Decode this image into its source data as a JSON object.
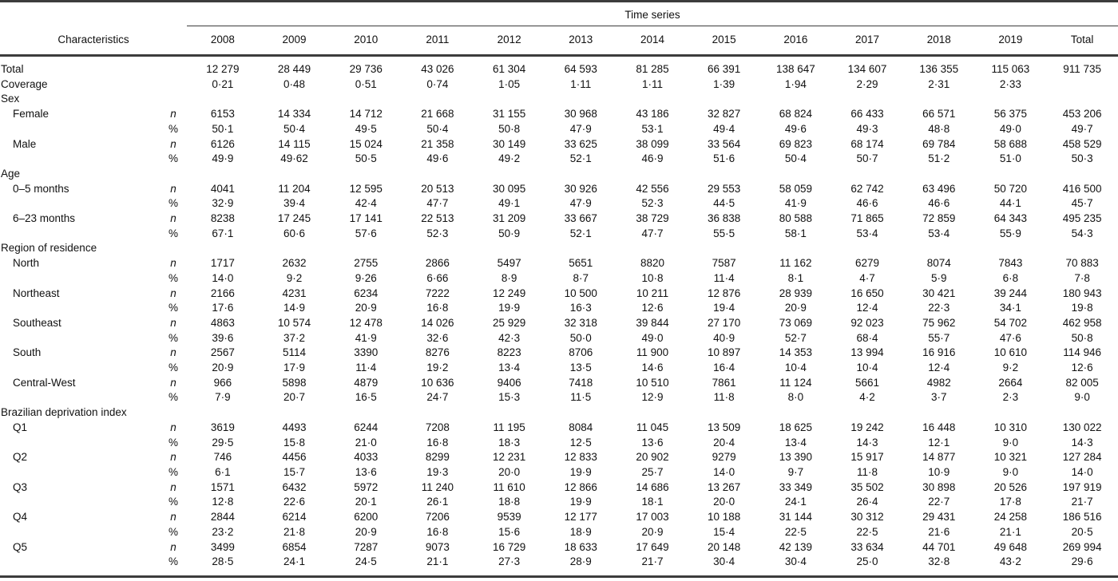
{
  "page": {
    "background": "#ffffff",
    "text_color": "#111111",
    "rule_color": "#3c3c3c"
  },
  "table": {
    "spanner_label": "Time series",
    "characteristics_header": "Characteristics",
    "columns": [
      "2008",
      "2009",
      "2010",
      "2011",
      "2012",
      "2013",
      "2014",
      "2015",
      "2016",
      "2017",
      "2018",
      "2019",
      "Total"
    ],
    "rows": [
      {
        "type": "data",
        "label": "Total",
        "indent": 0,
        "stat": "",
        "values": [
          "12 279",
          "28 449",
          "29 736",
          "43 026",
          "61 304",
          "64 593",
          "81 285",
          "66 391",
          "138 647",
          "134 607",
          "136 355",
          "115 063",
          "911 735"
        ]
      },
      {
        "type": "data",
        "label": "Coverage",
        "indent": 0,
        "stat": "",
        "values": [
          "0·21",
          "0·48",
          "0·51",
          "0·74",
          "1·05",
          "1·11",
          "1·11",
          "1·39",
          "1·94",
          "2·29",
          "2·31",
          "2·33",
          ""
        ]
      },
      {
        "type": "section",
        "label": "Sex"
      },
      {
        "type": "data",
        "label": "Female",
        "indent": 1,
        "stat": "n",
        "values": [
          "6153",
          "14 334",
          "14 712",
          "21 668",
          "31 155",
          "30 968",
          "43 186",
          "32 827",
          "68 824",
          "66 433",
          "66 571",
          "56 375",
          "453 206"
        ]
      },
      {
        "type": "data",
        "label": "",
        "indent": 1,
        "stat": "%",
        "values": [
          "50·1",
          "50·4",
          "49·5",
          "50·4",
          "50·8",
          "47·9",
          "53·1",
          "49·4",
          "49·6",
          "49·3",
          "48·8",
          "49·0",
          "49·7"
        ]
      },
      {
        "type": "data",
        "label": "Male",
        "indent": 1,
        "stat": "n",
        "values": [
          "6126",
          "14 115",
          "15 024",
          "21 358",
          "30 149",
          "33 625",
          "38 099",
          "33 564",
          "69 823",
          "68 174",
          "69 784",
          "58 688",
          "458 529"
        ]
      },
      {
        "type": "data",
        "label": "",
        "indent": 1,
        "stat": "%",
        "values": [
          "49·9",
          "49·62",
          "50·5",
          "49·6",
          "49·2",
          "52·1",
          "46·9",
          "51·6",
          "50·4",
          "50·7",
          "51·2",
          "51·0",
          "50·3"
        ]
      },
      {
        "type": "section",
        "label": "Age"
      },
      {
        "type": "data",
        "label": "0–5 months",
        "indent": 1,
        "stat": "n",
        "values": [
          "4041",
          "11 204",
          "12 595",
          "20 513",
          "30 095",
          "30 926",
          "42 556",
          "29 553",
          "58 059",
          "62 742",
          "63 496",
          "50 720",
          "416 500"
        ]
      },
      {
        "type": "data",
        "label": "",
        "indent": 1,
        "stat": "%",
        "values": [
          "32·9",
          "39·4",
          "42·4",
          "47·7",
          "49·1",
          "47·9",
          "52·3",
          "44·5",
          "41·9",
          "46·6",
          "46·6",
          "44·1",
          "45·7"
        ]
      },
      {
        "type": "data",
        "label": "6–23 months",
        "indent": 1,
        "stat": "n",
        "values": [
          "8238",
          "17 245",
          "17 141",
          "22 513",
          "31 209",
          "33 667",
          "38 729",
          "36 838",
          "80 588",
          "71 865",
          "72 859",
          "64 343",
          "495 235"
        ]
      },
      {
        "type": "data",
        "label": "",
        "indent": 1,
        "stat": "%",
        "values": [
          "67·1",
          "60·6",
          "57·6",
          "52·3",
          "50·9",
          "52·1",
          "47·7",
          "55·5",
          "58·1",
          "53·4",
          "53·4",
          "55·9",
          "54·3"
        ]
      },
      {
        "type": "section",
        "label": "Region of residence"
      },
      {
        "type": "data",
        "label": "North",
        "indent": 1,
        "stat": "n",
        "values": [
          "1717",
          "2632",
          "2755",
          "2866",
          "5497",
          "5651",
          "8820",
          "7587",
          "11 162",
          "6279",
          "8074",
          "7843",
          "70 883"
        ]
      },
      {
        "type": "data",
        "label": "",
        "indent": 1,
        "stat": "%",
        "values": [
          "14·0",
          "9·2",
          "9·26",
          "6·66",
          "8·9",
          "8·7",
          "10·8",
          "11·4",
          "8·1",
          "4·7",
          "5·9",
          "6·8",
          "7·8"
        ]
      },
      {
        "type": "data",
        "label": "Northeast",
        "indent": 1,
        "stat": "n",
        "values": [
          "2166",
          "4231",
          "6234",
          "7222",
          "12 249",
          "10 500",
          "10 211",
          "12 876",
          "28 939",
          "16 650",
          "30 421",
          "39 244",
          "180 943"
        ]
      },
      {
        "type": "data",
        "label": "",
        "indent": 1,
        "stat": "%",
        "values": [
          "17·6",
          "14·9",
          "20·9",
          "16·8",
          "19·9",
          "16·3",
          "12·6",
          "19·4",
          "20·9",
          "12·4",
          "22·3",
          "34·1",
          "19·8"
        ]
      },
      {
        "type": "data",
        "label": "Southeast",
        "indent": 1,
        "stat": "n",
        "values": [
          "4863",
          "10 574",
          "12 478",
          "14 026",
          "25 929",
          "32 318",
          "39 844",
          "27 170",
          "73 069",
          "92 023",
          "75 962",
          "54 702",
          "462 958"
        ]
      },
      {
        "type": "data",
        "label": "",
        "indent": 1,
        "stat": "%",
        "values": [
          "39·6",
          "37·2",
          "41·9",
          "32·6",
          "42·3",
          "50·0",
          "49·0",
          "40·9",
          "52·7",
          "68·4",
          "55·7",
          "47·6",
          "50·8"
        ]
      },
      {
        "type": "data",
        "label": "South",
        "indent": 1,
        "stat": "n",
        "values": [
          "2567",
          "5114",
          "3390",
          "8276",
          "8223",
          "8706",
          "11 900",
          "10 897",
          "14 353",
          "13 994",
          "16 916",
          "10 610",
          "114 946"
        ]
      },
      {
        "type": "data",
        "label": "",
        "indent": 1,
        "stat": "%",
        "values": [
          "20·9",
          "17·9",
          "11·4",
          "19·2",
          "13·4",
          "13·5",
          "14·6",
          "16·4",
          "10·4",
          "10·4",
          "12·4",
          "9·2",
          "12·6"
        ]
      },
      {
        "type": "data",
        "label": "Central-West",
        "indent": 1,
        "stat": "n",
        "values": [
          "966",
          "5898",
          "4879",
          "10 636",
          "9406",
          "7418",
          "10 510",
          "7861",
          "11 124",
          "5661",
          "4982",
          "2664",
          "82 005"
        ]
      },
      {
        "type": "data",
        "label": "",
        "indent": 1,
        "stat": "%",
        "values": [
          "7·9",
          "20·7",
          "16·5",
          "24·7",
          "15·3",
          "11·5",
          "12·9",
          "11·8",
          "8·0",
          "4·2",
          "3·7",
          "2·3",
          "9·0"
        ]
      },
      {
        "type": "section",
        "label": "Brazilian deprivation index"
      },
      {
        "type": "data",
        "label": "Q1",
        "indent": 1,
        "stat": "n",
        "values": [
          "3619",
          "4493",
          "6244",
          "7208",
          "11 195",
          "8084",
          "11 045",
          "13 509",
          "18 625",
          "19 242",
          "16 448",
          "10 310",
          "130 022"
        ]
      },
      {
        "type": "data",
        "label": "",
        "indent": 1,
        "stat": "%",
        "values": [
          "29·5",
          "15·8",
          "21·0",
          "16·8",
          "18·3",
          "12·5",
          "13·6",
          "20·4",
          "13·4",
          "14·3",
          "12·1",
          "9·0",
          "14·3"
        ]
      },
      {
        "type": "data",
        "label": "Q2",
        "indent": 1,
        "stat": "n",
        "values": [
          "746",
          "4456",
          "4033",
          "8299",
          "12 231",
          "12 833",
          "20 902",
          "9279",
          "13 390",
          "15 917",
          "14 877",
          "10 321",
          "127 284"
        ]
      },
      {
        "type": "data",
        "label": "",
        "indent": 1,
        "stat": "%",
        "values": [
          "6·1",
          "15·7",
          "13·6",
          "19·3",
          "20·0",
          "19·9",
          "25·7",
          "14·0",
          "9·7",
          "11·8",
          "10·9",
          "9·0",
          "14·0"
        ]
      },
      {
        "type": "data",
        "label": "Q3",
        "indent": 1,
        "stat": "n",
        "values": [
          "1571",
          "6432",
          "5972",
          "11 240",
          "11 610",
          "12 866",
          "14 686",
          "13 267",
          "33 349",
          "35 502",
          "30 898",
          "20 526",
          "197 919"
        ]
      },
      {
        "type": "data",
        "label": "",
        "indent": 1,
        "stat": "%",
        "values": [
          "12·8",
          "22·6",
          "20·1",
          "26·1",
          "18·8",
          "19·9",
          "18·1",
          "20·0",
          "24·1",
          "26·4",
          "22·7",
          "17·8",
          "21·7"
        ]
      },
      {
        "type": "data",
        "label": "Q4",
        "indent": 1,
        "stat": "n",
        "values": [
          "2844",
          "6214",
          "6200",
          "7206",
          "9539",
          "12 177",
          "17 003",
          "10 188",
          "31 144",
          "30 312",
          "29 431",
          "24 258",
          "186 516"
        ]
      },
      {
        "type": "data",
        "label": "",
        "indent": 1,
        "stat": "%",
        "values": [
          "23·2",
          "21·8",
          "20·9",
          "16·8",
          "15·6",
          "18·9",
          "20·9",
          "15·4",
          "22·5",
          "22·5",
          "21·6",
          "21·1",
          "20·5"
        ]
      },
      {
        "type": "data",
        "label": "Q5",
        "indent": 1,
        "stat": "n",
        "values": [
          "3499",
          "6854",
          "7287",
          "9073",
          "16 729",
          "18 633",
          "17 649",
          "20 148",
          "42 139",
          "33 634",
          "44 701",
          "49 648",
          "269 994"
        ]
      },
      {
        "type": "data",
        "label": "",
        "indent": 1,
        "stat": "%",
        "values": [
          "28·5",
          "24·1",
          "24·5",
          "21·1",
          "27·3",
          "28·9",
          "21·7",
          "30·4",
          "30·4",
          "25·0",
          "32·8",
          "43·2",
          "29·6"
        ]
      }
    ]
  }
}
